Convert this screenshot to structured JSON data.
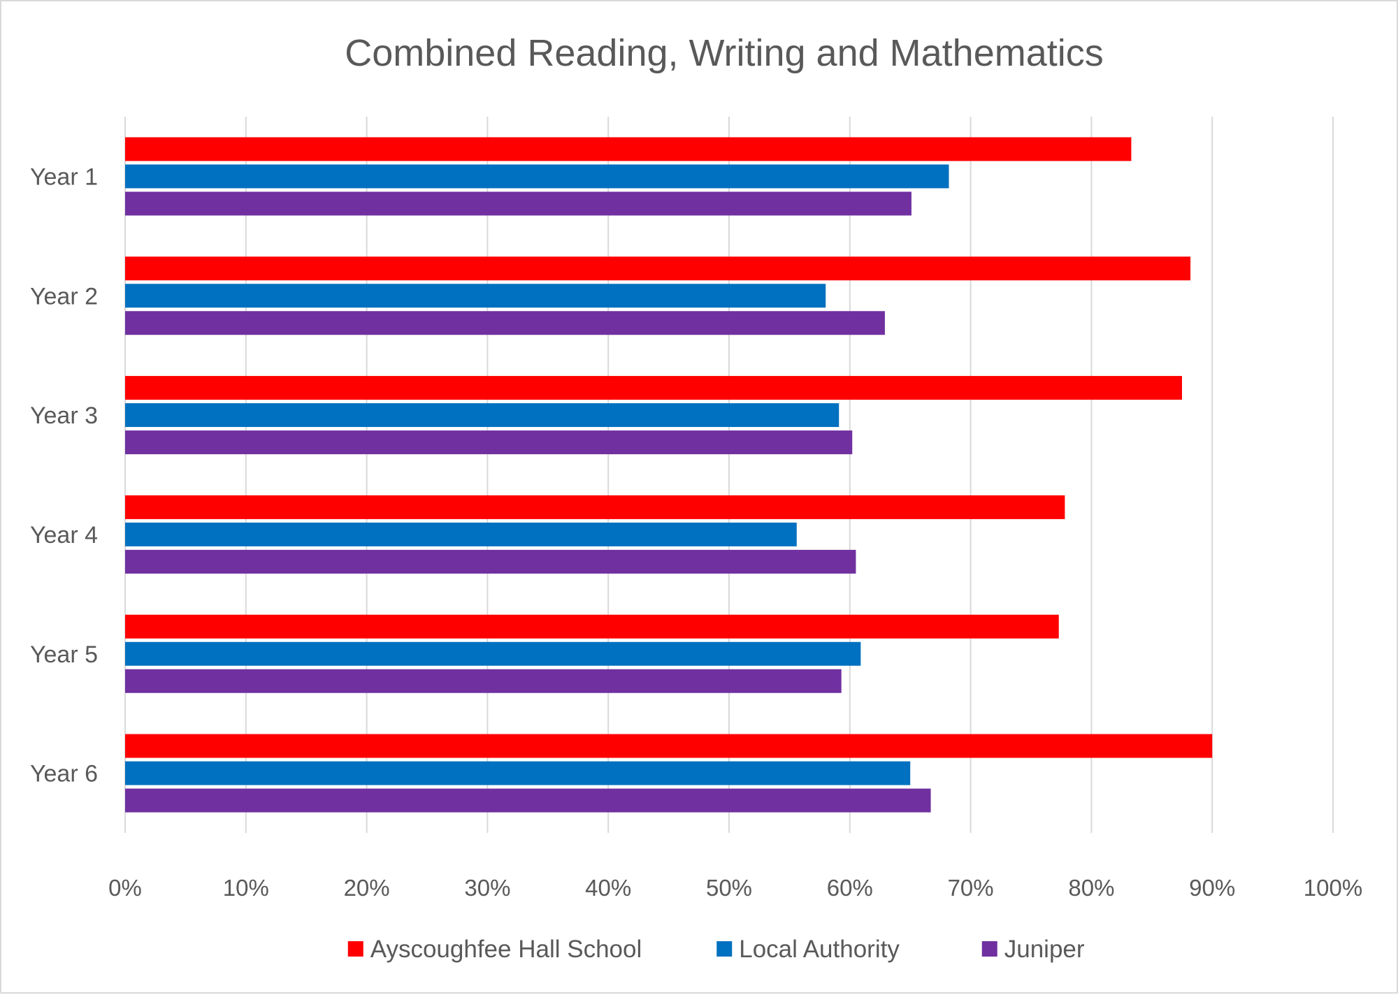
{
  "chart_data": {
    "type": "bar",
    "orientation": "horizontal",
    "title": "Combined Reading, Writing and Mathematics",
    "categories": [
      "Year 1",
      "Year 2",
      "Year 3",
      "Year 4",
      "Year 5",
      "Year 6"
    ],
    "series": [
      {
        "name": "Ayscoughfee Hall School",
        "color": "#ff0000",
        "values": [
          83.3,
          88.2,
          87.5,
          77.8,
          77.3,
          90.0
        ]
      },
      {
        "name": "Local Authority",
        "color": "#0070c0",
        "values": [
          68.2,
          58.0,
          59.1,
          55.6,
          60.9,
          65.0
        ]
      },
      {
        "name": "Juniper",
        "color": "#7030a0",
        "values": [
          65.1,
          62.9,
          60.2,
          60.5,
          59.3,
          66.7
        ]
      }
    ],
    "x_ticks": [
      "0%",
      "10%",
      "20%",
      "30%",
      "40%",
      "50%",
      "60%",
      "70%",
      "80%",
      "90%",
      "100%"
    ],
    "xlim": [
      0,
      100
    ],
    "grid": true,
    "legend_position": "bottom"
  }
}
